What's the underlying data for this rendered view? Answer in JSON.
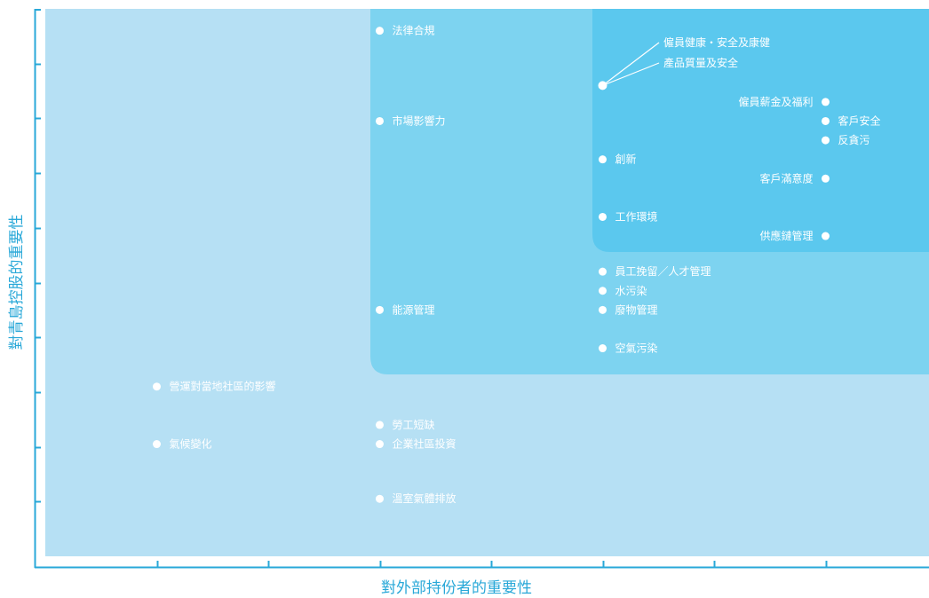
{
  "chart_data": {
    "type": "scatter",
    "title": "",
    "xlabel": "對外部持份者的重要性",
    "ylabel": "對青島控股的重要性",
    "xlim": [
      0,
      8
    ],
    "ylim": [
      0,
      10
    ],
    "grid": false,
    "legend": "none",
    "colors": {
      "zone_low": "#b6e0f4",
      "zone_mid": "#7dd3f0",
      "zone_high": "#5bc8ee",
      "axis": "#29a8d8",
      "marker": "#ffffff"
    },
    "points": [
      {
        "label": "法律合規",
        "x": 3,
        "y": 9.6
      },
      {
        "label": "僱員健康・安全及康健",
        "x": 5,
        "y": 8.6
      },
      {
        "label": "產品質量及安全",
        "x": 5,
        "y": 8.6
      },
      {
        "label": "僱員薪金及福利",
        "x": 7,
        "y": 8.3
      },
      {
        "label": "客戶安全",
        "x": 7,
        "y": 7.95
      },
      {
        "label": "反貪污",
        "x": 7,
        "y": 7.6
      },
      {
        "label": "市場影響力",
        "x": 3,
        "y": 7.95
      },
      {
        "label": "創新",
        "x": 5,
        "y": 7.25
      },
      {
        "label": "客戶滿意度",
        "x": 7,
        "y": 6.9
      },
      {
        "label": "工作環境",
        "x": 5,
        "y": 6.2
      },
      {
        "label": "供應鏈管理",
        "x": 7,
        "y": 5.85
      },
      {
        "label": "員工挽留／人才管理",
        "x": 5,
        "y": 5.2
      },
      {
        "label": "水污染",
        "x": 5,
        "y": 4.85
      },
      {
        "label": "廢物管理",
        "x": 5,
        "y": 4.5
      },
      {
        "label": "能源管理",
        "x": 3,
        "y": 4.5
      },
      {
        "label": "空氣污染",
        "x": 5,
        "y": 3.8
      },
      {
        "label": "營運對當地社區的影響",
        "x": 1,
        "y": 3.1
      },
      {
        "label": "氣候變化",
        "x": 1,
        "y": 2.05
      },
      {
        "label": "勞工短缺",
        "x": 3,
        "y": 2.4
      },
      {
        "label": "企業社區投資",
        "x": 3,
        "y": 2.05
      },
      {
        "label": "溫室氣體排放",
        "x": 3,
        "y": 1.05
      }
    ]
  }
}
